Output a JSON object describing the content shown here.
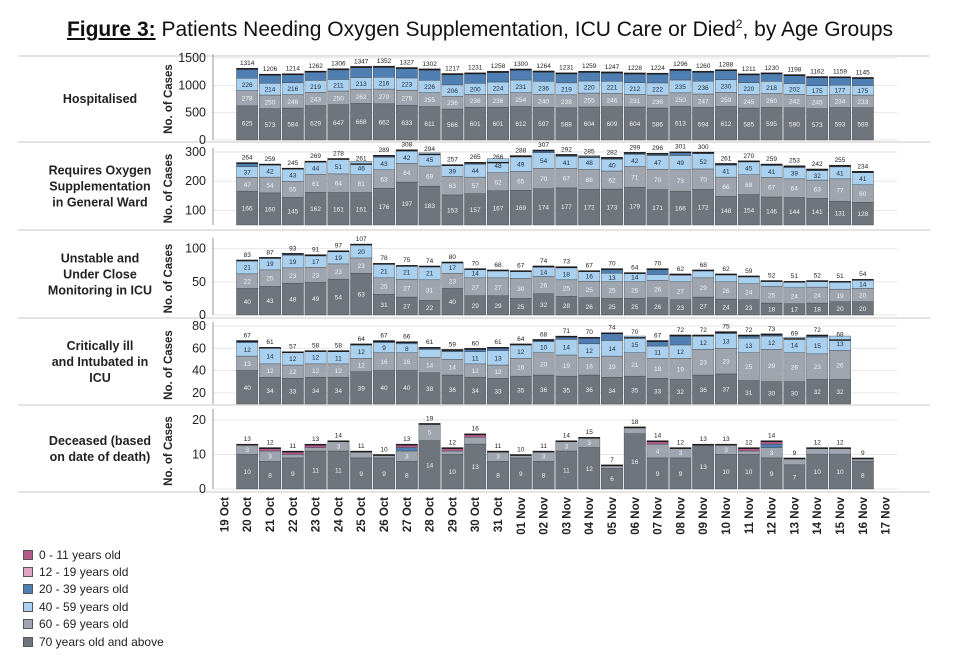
{
  "title": {
    "prefix": "Figure 3:",
    "main": "Patients Needing Oxygen Supplementation, ICU Care or Died",
    "sup": "2",
    "suffix": ", by Age Groups"
  },
  "chart_data": {
    "type": "bar",
    "stacked": true,
    "dates": [
      "19 Oct",
      "20 Oct",
      "21 Oct",
      "22 Oct",
      "23 Oct",
      "24 Oct",
      "25 Oct",
      "26 Oct",
      "27 Oct",
      "28 Oct",
      "29 Oct",
      "30 Oct",
      "31 Oct",
      "01 Nov",
      "02 Nov",
      "03 Nov",
      "04 Nov",
      "05 Nov",
      "06 Nov",
      "07 Nov",
      "08 Nov",
      "09 Nov",
      "10 Nov",
      "11 Nov",
      "12 Nov",
      "13 Nov",
      "14 Nov",
      "15 Nov",
      "16 Nov",
      "17 Nov"
    ],
    "legend": [
      {
        "label": "0 - 11 years old",
        "color": "#b45a8c"
      },
      {
        "label": "12 - 19 years old",
        "color": "#e2a4c4"
      },
      {
        "label": "20 - 39 years old",
        "color": "#4f7eb3"
      },
      {
        "label": "40 - 59 years old",
        "color": "#a9d0ee"
      },
      {
        "label": "60 - 69 years old",
        "color": "#9ea5ae"
      },
      {
        "label": "70 years old and above",
        "color": "#6f757d"
      }
    ],
    "panels": [
      {
        "label": "Hospitalised",
        "ylabel": "No. of Cases",
        "ylim": [
          0,
          1500
        ],
        "ticks": [
          0,
          500,
          1000,
          1500
        ],
        "totals": [
          null,
          1314,
          1206,
          1214,
          1262,
          1306,
          1347,
          1352,
          1327,
          1302,
          1217,
          1231,
          1258,
          1300,
          1264,
          1231,
          1259,
          1247,
          1228,
          1224,
          1296,
          1260,
          1288,
          1211,
          1230,
          1198,
          1162,
          1159,
          1145,
          null
        ],
        "series": {
          "70+": [
            null,
            625,
            573,
            584,
            629,
            647,
            668,
            662,
            633,
            611,
            566,
            601,
            601,
            612,
            597,
            588,
            604,
            609,
            604,
            586,
            613,
            594,
            612,
            585,
            595,
            590,
            573,
            593,
            589,
            null
          ],
          "60-69": [
            null,
            278,
            250,
            246,
            243,
            250,
            262,
            270,
            279,
            255,
            236,
            236,
            236,
            254,
            240,
            238,
            255,
            246,
            231,
            236,
            250,
            247,
            259,
            245,
            260,
            242,
            245,
            234,
            233,
            null
          ],
          "40-59": [
            null,
            226,
            214,
            216,
            219,
            211,
            213,
            216,
            223,
            226,
            206,
            200,
            224,
            231,
            236,
            219,
            220,
            221,
            212,
            222,
            235,
            236,
            230,
            220,
            218,
            202,
            175,
            177,
            175,
            null
          ]
        }
      },
      {
        "label": "Requires Oxygen Supplementation in General Ward",
        "ylabel": "No. of Cases",
        "ylim": [
          50,
          300
        ],
        "ticks": [
          100,
          200,
          300
        ],
        "totals": [
          null,
          264,
          259,
          245,
          269,
          278,
          261,
          289,
          308,
          294,
          257,
          265,
          266,
          288,
          307,
          292,
          285,
          282,
          299,
          296,
          301,
          300,
          261,
          270,
          259,
          253,
          242,
          255,
          234,
          null
        ],
        "series": {
          "70+": [
            null,
            166,
            160,
            145,
            162,
            161,
            161,
            176,
            197,
            183,
            153,
            157,
            167,
            169,
            174,
            177,
            172,
            173,
            179,
            171,
            166,
            172,
            148,
            154,
            146,
            144,
            141,
            131,
            128,
            null
          ],
          "60-69": [
            null,
            47,
            54,
            55,
            61,
            64,
            61,
            63,
            64,
            69,
            63,
            57,
            62,
            65,
            70,
            67,
            68,
            62,
            71,
            70,
            73,
            70,
            66,
            68,
            67,
            64,
            63,
            77,
            60,
            null
          ],
          "40-59": [
            null,
            37,
            42,
            43,
            44,
            51,
            46,
            43,
            42,
            45,
            39,
            44,
            48,
            49,
            54,
            41,
            48,
            40,
            42,
            47,
            49,
            52,
            41,
            45,
            41,
            39,
            32,
            41,
            41,
            null
          ]
        }
      },
      {
        "label": "Unstable and Under Close Monitoring in ICU",
        "ylabel": "No. of Cases",
        "ylim": [
          0,
          110
        ],
        "ticks": [
          0,
          50,
          100
        ],
        "totals": [
          null,
          83,
          87,
          93,
          91,
          97,
          107,
          78,
          75,
          74,
          80,
          70,
          68,
          67,
          74,
          73,
          67,
          70,
          64,
          70,
          62,
          68,
          62,
          59,
          52,
          51,
          52,
          51,
          54,
          null
        ],
        "series": {
          "70+": [
            null,
            40,
            43,
            48,
            49,
            54,
            63,
            31,
            27,
            22,
            40,
            29,
            29,
            25,
            32,
            28,
            26,
            25,
            25,
            26,
            23,
            27,
            24,
            23,
            18,
            17,
            18,
            20,
            20,
            null
          ],
          "60-69": [
            null,
            22,
            25,
            23,
            23,
            23,
            23,
            25,
            27,
            31,
            23,
            27,
            27,
            30,
            26,
            25,
            25,
            25,
            25,
            26,
            27,
            29,
            26,
            24,
            25,
            24,
            24,
            19,
            20,
            null
          ],
          "40-59": [
            null,
            21,
            19,
            19,
            17,
            19,
            20,
            21,
            21,
            21,
            17,
            14,
            12,
            11,
            14,
            18,
            16,
            13,
            14,
            9,
            10,
            12,
            12,
            12,
            9,
            10,
            10,
            12,
            14,
            null
          ]
        }
      },
      {
        "label": "Critically ill and Intubated in ICU",
        "ylabel": "No. of Cases",
        "ylim": [
          10,
          80
        ],
        "ticks": [
          20,
          40,
          60,
          80
        ],
        "totals": [
          null,
          67,
          61,
          57,
          58,
          58,
          64,
          67,
          66,
          61,
          59,
          60,
          61,
          64,
          68,
          71,
          70,
          74,
          70,
          67,
          72,
          72,
          75,
          72,
          73,
          69,
          72,
          68,
          null,
          null
        ],
        "series": {
          "70+": [
            null,
            40,
            34,
            33,
            34,
            34,
            39,
            40,
            40,
            38,
            36,
            34,
            33,
            35,
            36,
            35,
            36,
            34,
            35,
            33,
            32,
            36,
            37,
            31,
            30,
            30,
            32,
            32,
            27,
            null
          ],
          "60-69": [
            null,
            13,
            12,
            12,
            12,
            12,
            12,
            16,
            16,
            14,
            14,
            12,
            12,
            16,
            20,
            19,
            16,
            19,
            21,
            18,
            19,
            23,
            23,
            25,
            29,
            26,
            23,
            26,
            26,
            null
          ],
          "40-59": [
            null,
            12,
            14,
            12,
            12,
            11,
            12,
            9,
            8,
            7,
            7,
            11,
            13,
            12,
            10,
            14,
            12,
            14,
            15,
            11,
            12,
            12,
            13,
            13,
            12,
            14,
            15,
            13,
            14,
            null
          ]
        }
      },
      {
        "label": "Deceased (based on date of death)",
        "ylabel": "No. of Cases",
        "ylim": [
          0,
          22
        ],
        "ticks": [
          0,
          10,
          20
        ],
        "totals": [
          null,
          13,
          12,
          11,
          13,
          14,
          11,
          10,
          13,
          19,
          12,
          16,
          11,
          10,
          11,
          14,
          15,
          7,
          18,
          14,
          12,
          13,
          13,
          12,
          14,
          9,
          12,
          12,
          9,
          null
        ],
        "series": {
          "70+": [
            null,
            10,
            8,
            9,
            11,
            11,
            9,
            9,
            8,
            14,
            10,
            13,
            8,
            9,
            8,
            11,
            12,
            6,
            16,
            9,
            9,
            13,
            10,
            10,
            9,
            7,
            10,
            10,
            8,
            null
          ],
          "60-69": [
            null,
            3,
            3,
            1,
            1,
            3,
            2,
            1,
            3,
            5,
            1,
            2,
            3,
            1,
            3,
            3,
            3,
            1,
            2,
            4,
            3,
            0,
            3,
            1,
            3,
            2,
            2,
            2,
            1,
            null
          ]
        }
      }
    ]
  }
}
